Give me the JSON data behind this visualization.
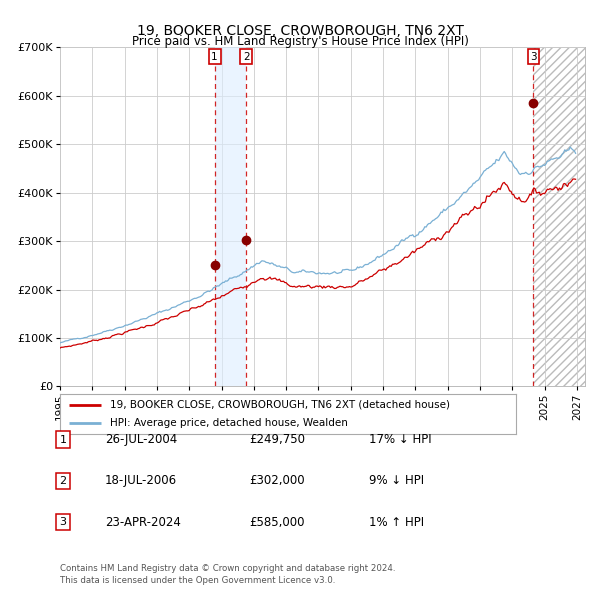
{
  "title": "19, BOOKER CLOSE, CROWBOROUGH, TN6 2XT",
  "subtitle": "Price paid vs. HM Land Registry's House Price Index (HPI)",
  "ylim": [
    0,
    700000
  ],
  "yticks": [
    0,
    100000,
    200000,
    300000,
    400000,
    500000,
    600000,
    700000
  ],
  "ytick_labels": [
    "£0",
    "£100K",
    "£200K",
    "£300K",
    "£400K",
    "£500K",
    "£600K",
    "£700K"
  ],
  "hpi_color": "#7ab0d4",
  "price_color": "#cc0000",
  "marker_color": "#880000",
  "grid_color": "#cccccc",
  "sale_dates_year": [
    2004.57,
    2006.54,
    2024.31
  ],
  "sale_prices": [
    249750,
    302000,
    585000
  ],
  "sale_labels": [
    "1",
    "2",
    "3"
  ],
  "legend_entries": [
    "19, BOOKER CLOSE, CROWBOROUGH, TN6 2XT (detached house)",
    "HPI: Average price, detached house, Wealden"
  ],
  "table_rows": [
    {
      "num": "1",
      "date": "26-JUL-2004",
      "price": "£249,750",
      "change": "17% ↓ HPI"
    },
    {
      "num": "2",
      "date": "18-JUL-2006",
      "price": "£302,000",
      "change": "9% ↓ HPI"
    },
    {
      "num": "3",
      "date": "23-APR-2024",
      "price": "£585,000",
      "change": "1% ↑ HPI"
    }
  ],
  "footnote": "Contains HM Land Registry data © Crown copyright and database right 2024.\nThis data is licensed under the Open Government Licence v3.0.",
  "shade_color": "#ddeeff",
  "xlim_start": 1995.0,
  "xlim_end": 2027.5,
  "x_ticks": [
    1995,
    1997,
    1999,
    2001,
    2003,
    2005,
    2007,
    2009,
    2011,
    2013,
    2015,
    2017,
    2019,
    2021,
    2023,
    2025,
    2027
  ]
}
